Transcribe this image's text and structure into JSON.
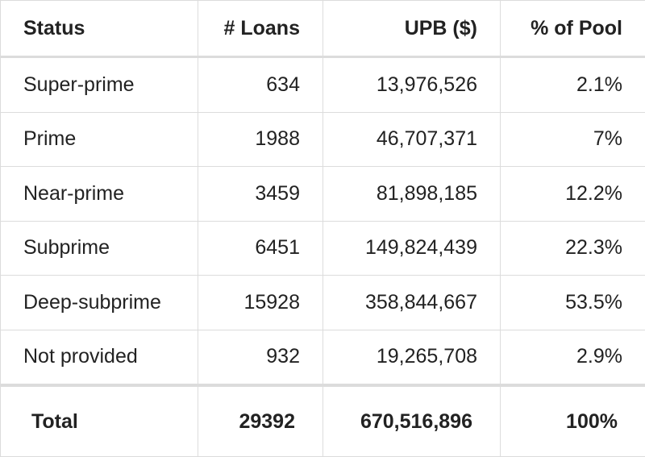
{
  "table": {
    "header": [
      "Status",
      "# Loans",
      "UPB ($)",
      "% of Pool"
    ],
    "rows": [
      [
        "Super-prime",
        "634",
        "13,976,526",
        "2.1%"
      ],
      [
        "Prime",
        "1988",
        "46,707,371",
        "7%"
      ],
      [
        "Near-prime",
        "3459",
        "81,898,185",
        "12.2%"
      ],
      [
        "Subprime",
        "6451",
        "149,824,439",
        "22.3%"
      ],
      [
        "Deep-subprime",
        "15928",
        "358,844,667",
        "53.5%"
      ],
      [
        "Not provided",
        "932",
        "19,265,708",
        "2.9%"
      ]
    ],
    "total": [
      "Total",
      "29392",
      "670,516,896",
      "100%"
    ]
  }
}
